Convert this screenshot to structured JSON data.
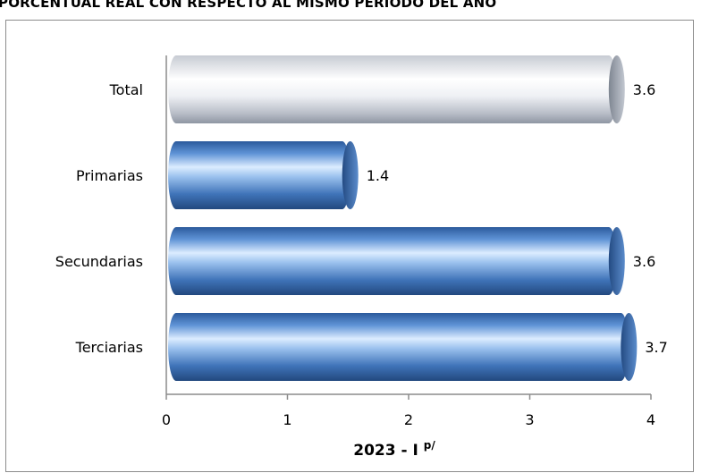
{
  "title": "PORCENTUAL REAL CON RESPECTO AL MISMO PERIODO DEL AÑO",
  "chart_data": {
    "type": "bar",
    "orientation": "horizontal",
    "categories": [
      "Total",
      "Primarias",
      "Secundarias",
      "Terciarias"
    ],
    "values": [
      3.6,
      1.4,
      3.6,
      3.7
    ],
    "value_labels": [
      "3.6",
      "1.4",
      "3.6",
      "3.7"
    ],
    "xlabel": "2023 - I",
    "xlabel_superscript": "p/",
    "xlim": [
      0,
      4
    ],
    "xticks": [
      "0",
      "1",
      "2",
      "3",
      "4"
    ],
    "grid": false,
    "colors": {
      "highlight": "#e8e8ec",
      "series": "#3c6fb4",
      "frame": "#8c8c8c"
    }
  }
}
